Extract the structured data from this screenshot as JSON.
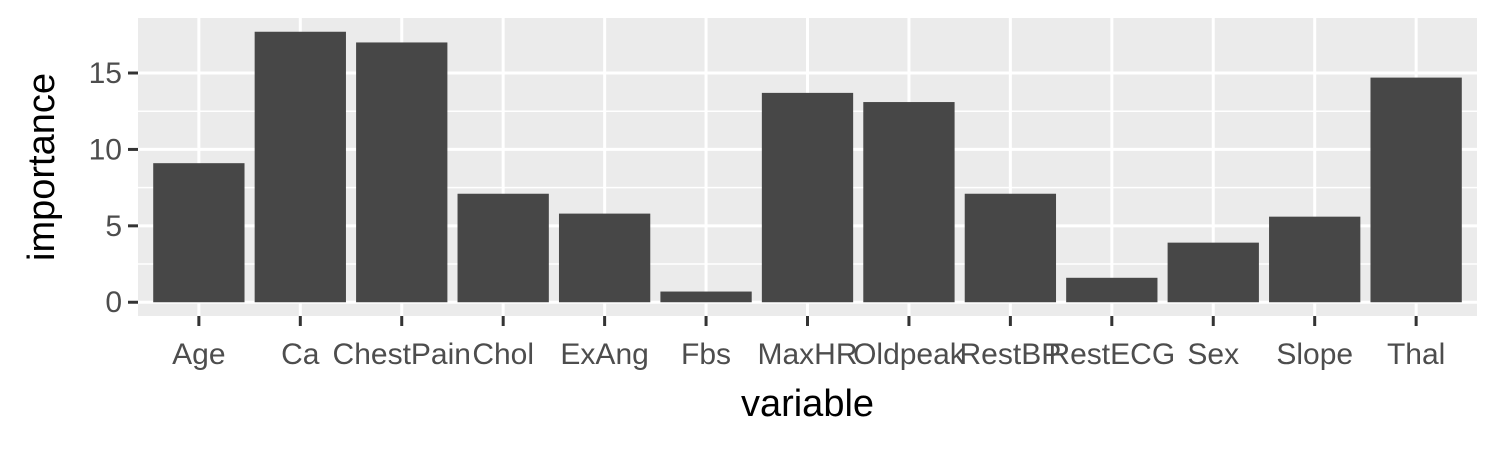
{
  "chart_data": {
    "type": "bar",
    "title": "",
    "xlabel": "variable",
    "ylabel": "importance",
    "categories": [
      "Age",
      "Ca",
      "ChestPain",
      "Chol",
      "ExAng",
      "Fbs",
      "MaxHR",
      "Oldpeak",
      "RestBP",
      "RestECG",
      "Sex",
      "Slope",
      "Thal"
    ],
    "values": [
      9.1,
      17.7,
      17.0,
      7.1,
      5.8,
      0.7,
      13.7,
      13.1,
      7.1,
      1.6,
      3.9,
      5.6,
      14.7
    ],
    "ylim": [
      -0.9,
      18.6
    ],
    "yticks": [
      0,
      5,
      10,
      15
    ],
    "grid": true,
    "legend": "none",
    "colors": {
      "bar": "#474747",
      "panel": "#ebebeb",
      "grid": "#ffffff",
      "tick": "#333333"
    }
  }
}
